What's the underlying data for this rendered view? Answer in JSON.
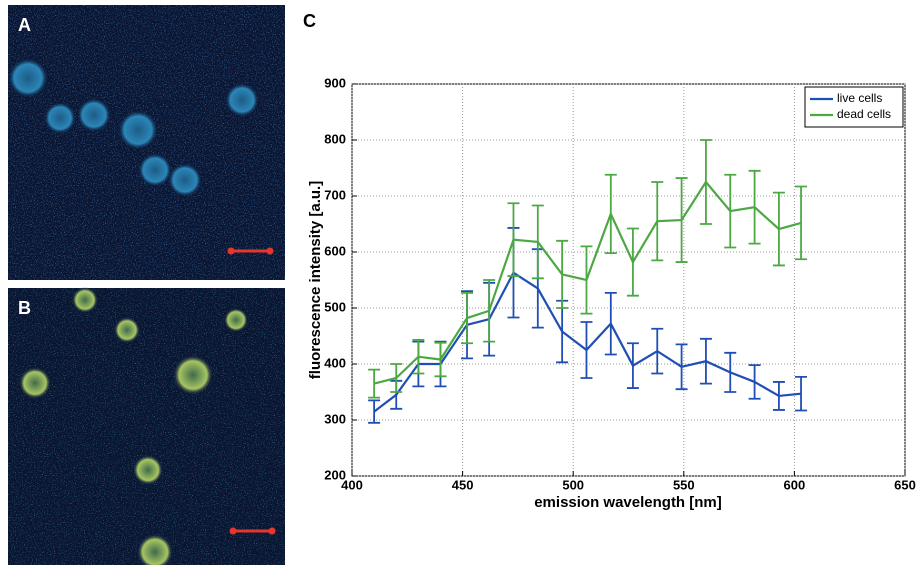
{
  "panel_labels": [
    "A",
    "B",
    "C"
  ],
  "chart_data": {
    "type": "line",
    "xlabel": "emission wavelength [nm]",
    "ylabel": "fluorescence intensity [a.u.]",
    "x": [
      410,
      420,
      430,
      440,
      452,
      462,
      473,
      484,
      495,
      506,
      517,
      527,
      538,
      549,
      560,
      571,
      582,
      593,
      603
    ],
    "series": [
      {
        "name": "live cells",
        "color": "#1f4fb4",
        "values": [
          315,
          345,
          400,
          400,
          470,
          480,
          563,
          535,
          458,
          425,
          472,
          397,
          423,
          395,
          405,
          385,
          368,
          343,
          347
        ],
        "errors": [
          20,
          25,
          40,
          40,
          60,
          65,
          80,
          70,
          55,
          50,
          55,
          40,
          40,
          40,
          40,
          35,
          30,
          25,
          30
        ]
      },
      {
        "name": "dead cells",
        "color": "#4ca843",
        "values": [
          365,
          375,
          413,
          408,
          482,
          495,
          622,
          618,
          560,
          550,
          668,
          582,
          655,
          657,
          725,
          673,
          680,
          641,
          652
        ],
        "errors": [
          25,
          25,
          30,
          30,
          45,
          55,
          65,
          65,
          60,
          60,
          70,
          60,
          70,
          75,
          75,
          65,
          65,
          65,
          65
        ]
      }
    ],
    "xlim": [
      400,
      650
    ],
    "xticks": [
      400,
      450,
      500,
      550,
      600,
      650
    ],
    "ylim": [
      200,
      900
    ],
    "yticks": [
      200,
      300,
      400,
      500,
      600,
      700,
      800,
      900
    ],
    "grid": true,
    "legend": "upper right"
  }
}
